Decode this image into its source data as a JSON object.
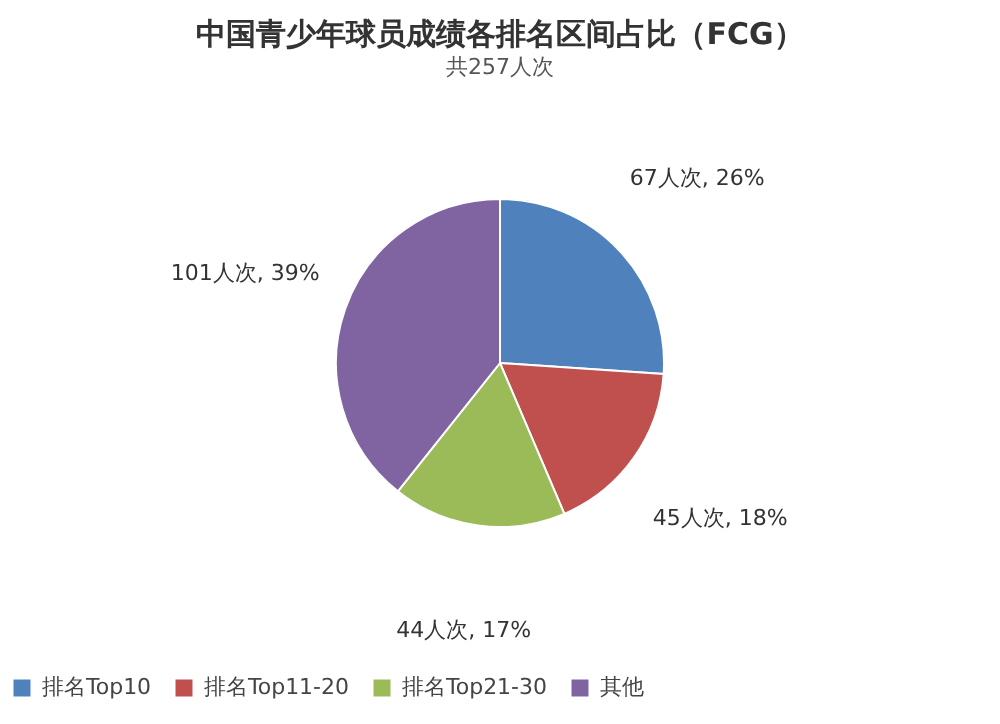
{
  "chart_data": {
    "type": "pie",
    "title": "中国青少年球员成绩各排名区间占比（FCG）",
    "subtitle": "共257人次",
    "categories": [
      "排名Top10",
      "排名Top11-20",
      "排名Top21-30",
      "其他"
    ],
    "values": [
      67,
      45,
      44,
      101
    ],
    "colors": [
      "#4f81bd",
      "#c0504d",
      "#9bbb59",
      "#8064a2"
    ],
    "value_labels": [
      "67人次, 26%",
      "45人次, 18%",
      "44人次, 17%",
      "101人次, 39%"
    ],
    "legend": "bottom"
  }
}
